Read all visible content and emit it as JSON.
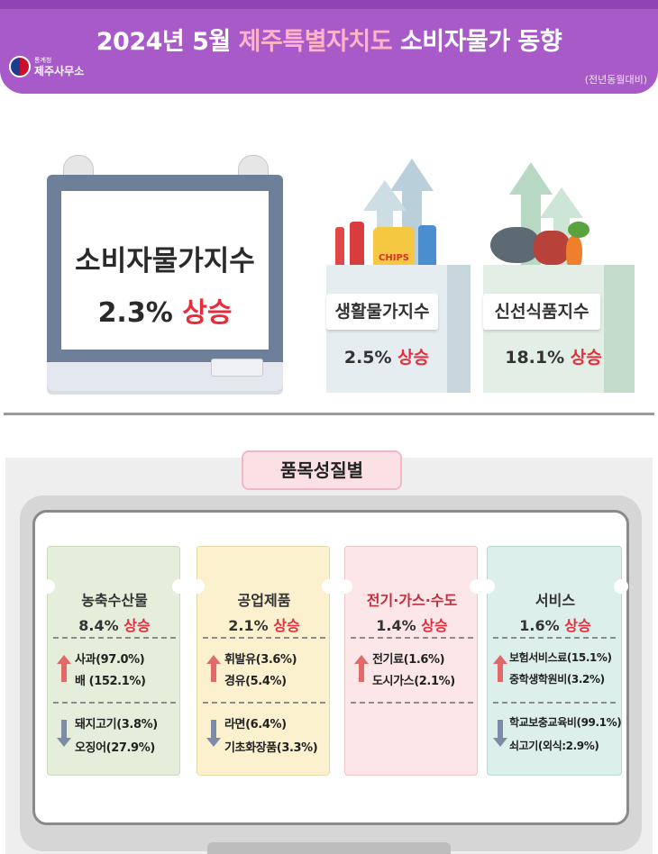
{
  "header": {
    "title_prefix": "2024년 5월 ",
    "title_highlight": "제주특별자치도",
    "title_suffix": " 소비자물가 동향",
    "logo_org": "통계청",
    "logo_office": "제주사무소",
    "comparison_note": "(전년동월대비)"
  },
  "cpi": {
    "title": "소비자물가지수",
    "value": "2.3%",
    "direction": "상승"
  },
  "living": {
    "label": "생활물가지수",
    "value": "2.5%",
    "direction": "상승",
    "bag_text": "CHIPS"
  },
  "fresh": {
    "label": "신선식품지수",
    "value": "18.1%",
    "direction": "상승"
  },
  "section_title": "품목성질별",
  "categories": [
    {
      "name": "농축수산물",
      "value": "8.4%",
      "direction": "상승",
      "up_items": [
        "사과(97.0%)",
        "배 (152.1%)"
      ],
      "down_items": [
        "돼지고기(3.8%)",
        "오징어(27.9%)"
      ]
    },
    {
      "name": "공업제품",
      "value": "2.1%",
      "direction": "상승",
      "up_items": [
        "휘발유(3.6%)",
        "경유(5.4%)"
      ],
      "down_items": [
        "라면(6.4%)",
        "기초화장품(3.3%)"
      ]
    },
    {
      "name": "전기·가스·수도",
      "value": "1.4%",
      "direction": "상승",
      "up_items": [
        "전기료(1.6%)",
        "도시가스(2.1%)"
      ],
      "down_items": []
    },
    {
      "name": "서비스",
      "value": "1.6%",
      "direction": "상승",
      "up_items": [
        "보험서비스료(15.1%)",
        "중학생학원비(3.2%)"
      ],
      "down_items": [
        "학교보충교육비(99.1%)",
        "쇠고기(외식:2.9%)"
      ]
    }
  ],
  "colors": {
    "header": "#a85ac8",
    "highlight": "#ffb3c8",
    "rise": "#e62d3c",
    "ticket_agri": "#e4eedb",
    "ticket_industry": "#fbf1cf",
    "ticket_utility": "#fde6e8",
    "ticket_service": "#dcefea"
  }
}
